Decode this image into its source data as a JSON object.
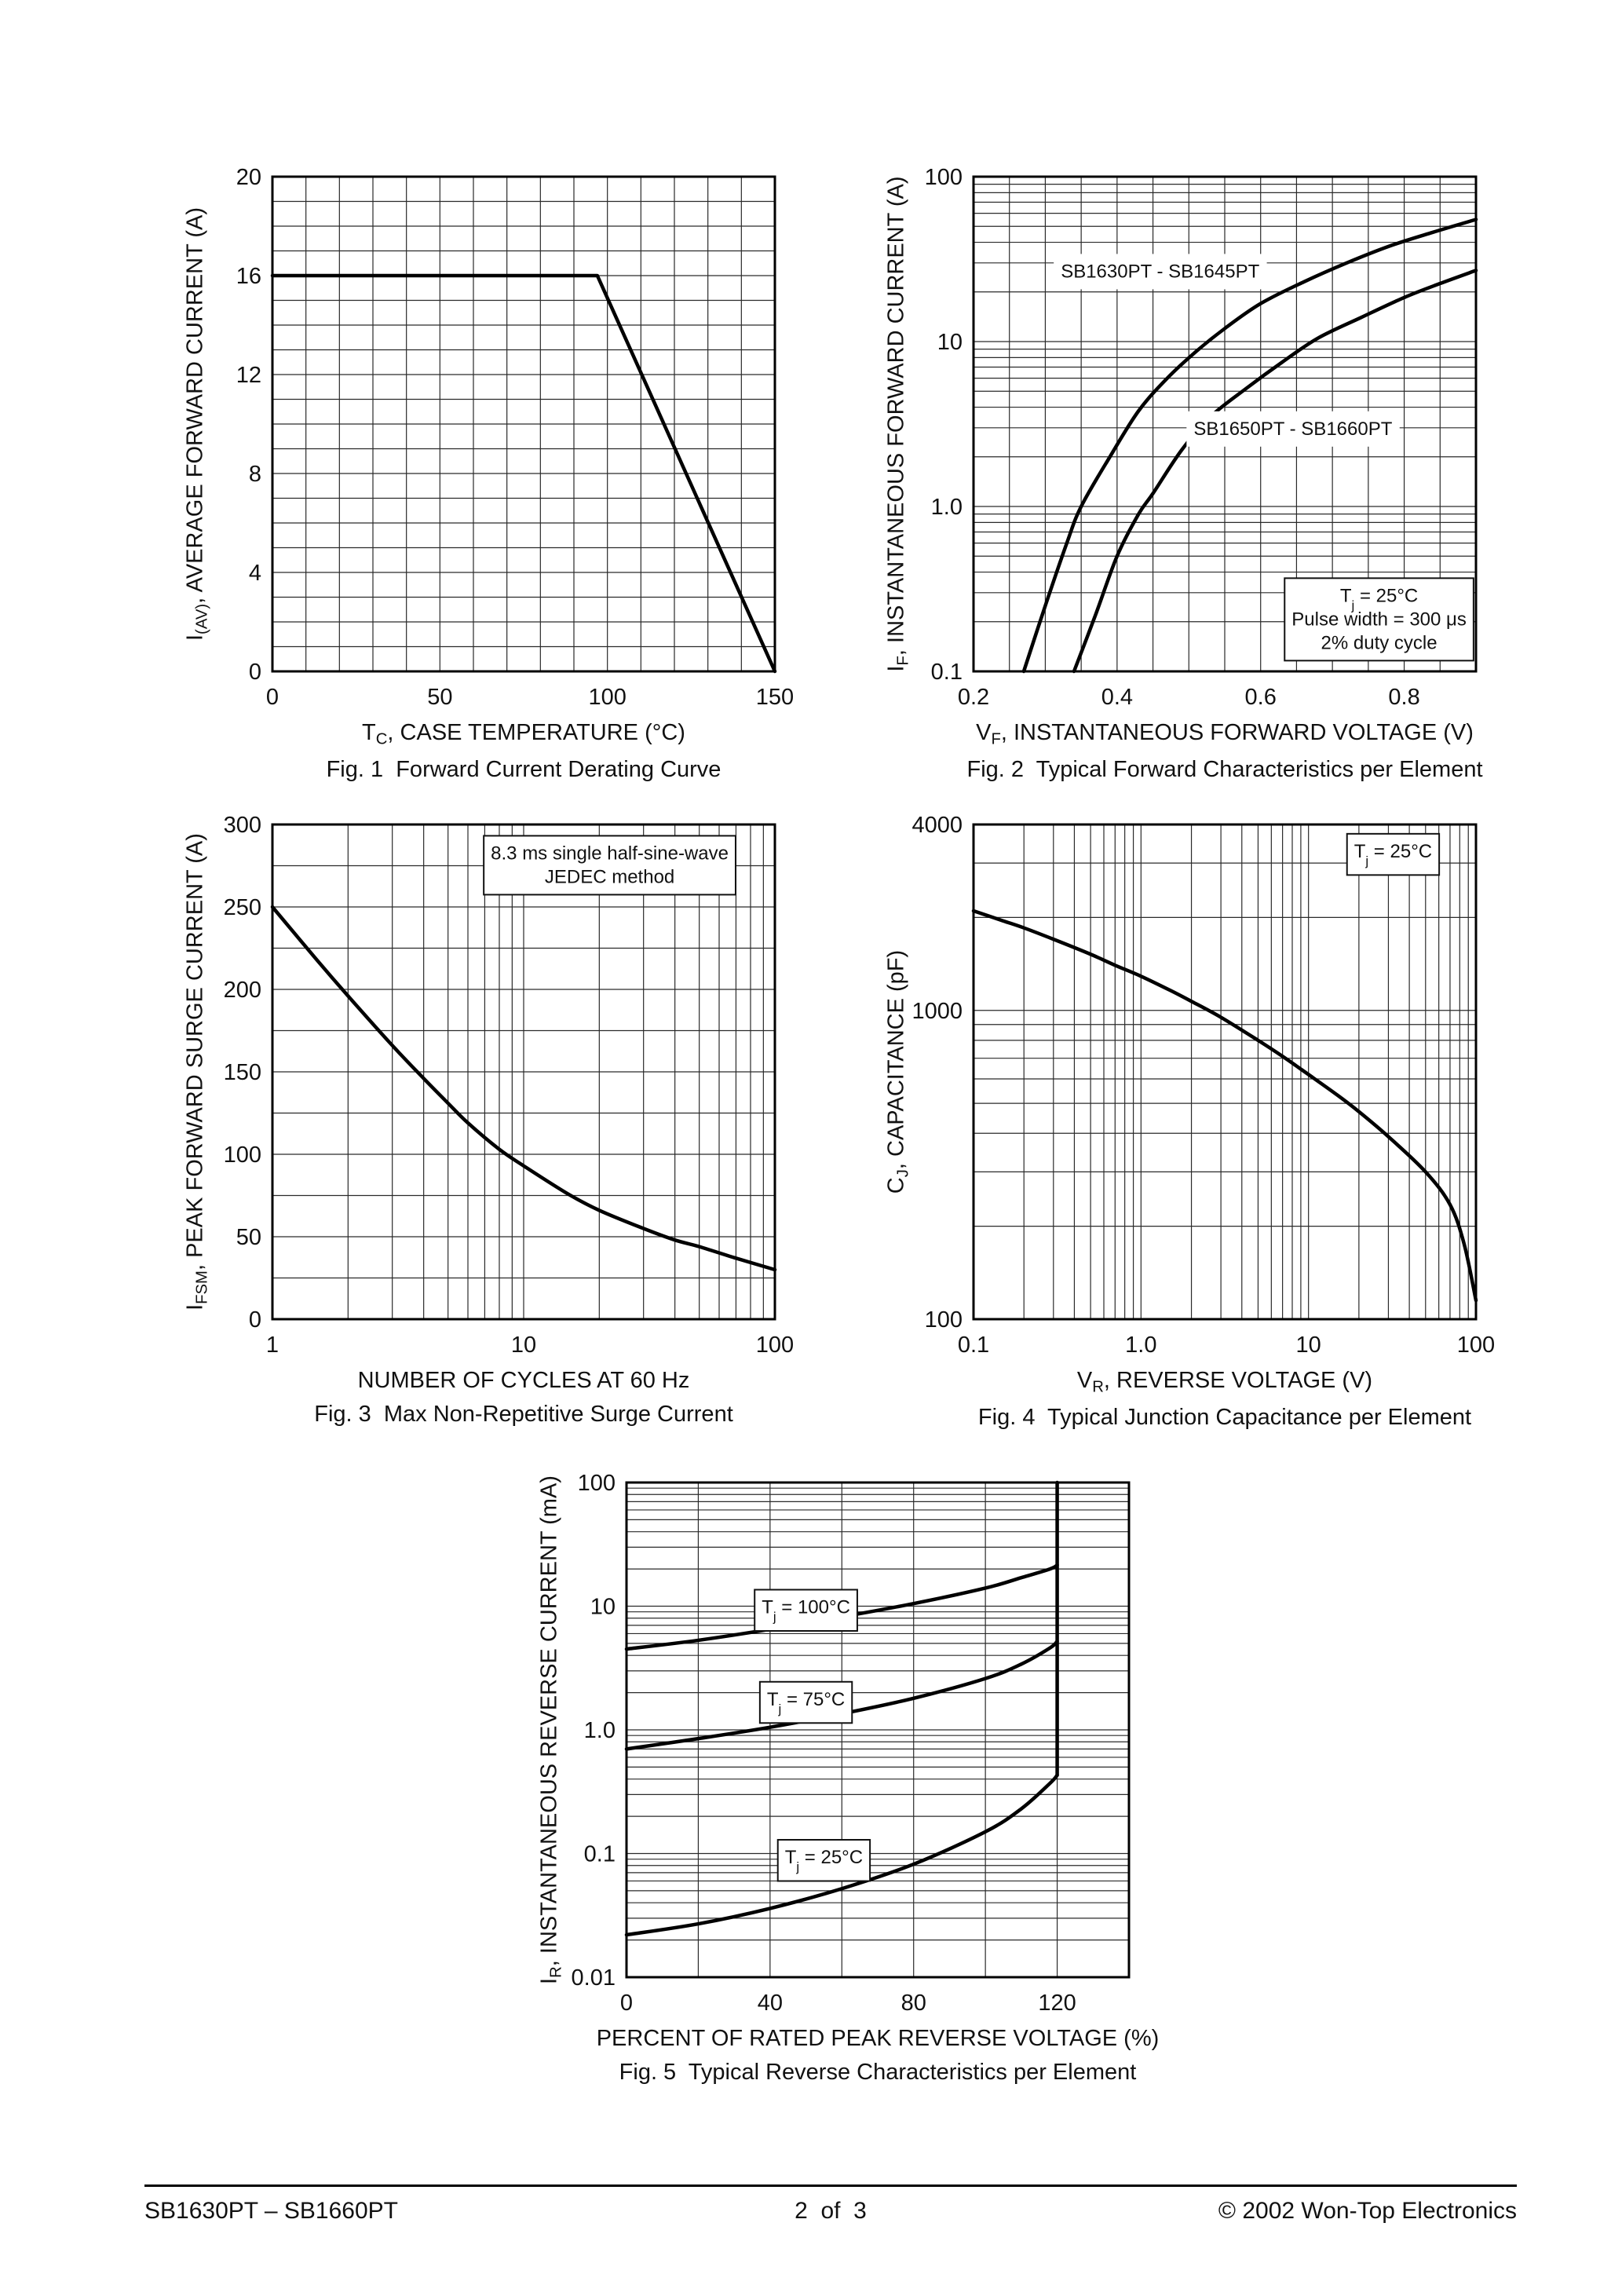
{
  "page": {
    "footer": {
      "left": "SB1630PT – SB1660PT",
      "center": "2  of  3",
      "right": "© 2002 Won-Top Electronics"
    }
  },
  "chart_data": [
    {
      "id": "fig1",
      "type": "line",
      "caption": "Fig. 1  Forward Current Derating Curve",
      "ylabel_parts": [
        {
          "t": "I"
        },
        {
          "t": "(AV)",
          "sub": true
        },
        {
          "t": ", AVERAGE FORWARD CURRENT (A)"
        }
      ],
      "xlabel_parts": [
        {
          "t": "T"
        },
        {
          "t": "C",
          "sub": true
        },
        {
          "t": ", CASE TEMPERATURE (°C)"
        }
      ],
      "x": {
        "type": "linear",
        "min": 0,
        "max": 150,
        "minor_step": 10,
        "ticks": [
          0,
          50,
          100,
          150
        ],
        "tick_labels": [
          "0",
          "50",
          "100",
          "150"
        ]
      },
      "y": {
        "type": "linear",
        "min": 0,
        "max": 20,
        "minor_step": 1,
        "ticks": [
          0,
          4,
          8,
          12,
          16,
          20
        ],
        "tick_labels": [
          "0",
          "4",
          "8",
          "12",
          "16",
          "20"
        ]
      },
      "series": [
        {
          "name": "derating-curve",
          "smooth": false,
          "points": [
            [
              0,
              16
            ],
            [
              97,
              16
            ],
            [
              150,
              0
            ]
          ]
        }
      ],
      "annotations": []
    },
    {
      "id": "fig2",
      "type": "line",
      "caption": "Fig. 2  Typical Forward Characteristics per Element",
      "ylabel_parts": [
        {
          "t": "I"
        },
        {
          "t": "F",
          "sub": true
        },
        {
          "t": ", INSTANTANEOUS FORWARD CURRENT (A)"
        }
      ],
      "xlabel_parts": [
        {
          "t": "V"
        },
        {
          "t": "F",
          "sub": true
        },
        {
          "t": ", INSTANTANEOUS FORWARD VOLTAGE (V)"
        }
      ],
      "x": {
        "type": "linear",
        "min": 0.2,
        "max": 0.9,
        "minor_step": 0.05,
        "ticks": [
          0.2,
          0.4,
          0.6,
          0.8
        ],
        "tick_labels": [
          "0.2",
          "0.4",
          "0.6",
          "0.8"
        ]
      },
      "y": {
        "type": "log",
        "min": 0.1,
        "max": 100,
        "ticks": [
          0.1,
          1,
          10,
          100
        ],
        "tick_labels": [
          "0.1",
          "1.0",
          "10",
          "100"
        ]
      },
      "series": [
        {
          "name": "SB1630PT - SB1645PT",
          "points": [
            [
              0.27,
              0.1
            ],
            [
              0.3,
              0.25
            ],
            [
              0.33,
              0.6
            ],
            [
              0.35,
              1.0
            ],
            [
              0.39,
              2.0
            ],
            [
              0.43,
              3.8
            ],
            [
              0.47,
              6.0
            ],
            [
              0.51,
              8.7
            ],
            [
              0.55,
              12
            ],
            [
              0.6,
              17
            ],
            [
              0.66,
              23
            ],
            [
              0.72,
              30
            ],
            [
              0.78,
              38
            ],
            [
              0.84,
              46
            ],
            [
              0.9,
              55
            ]
          ]
        },
        {
          "name": "SB1650PT - SB1660PT",
          "points": [
            [
              0.34,
              0.1
            ],
            [
              0.37,
              0.22
            ],
            [
              0.4,
              0.5
            ],
            [
              0.43,
              0.9
            ],
            [
              0.45,
              1.2
            ],
            [
              0.49,
              2.2
            ],
            [
              0.53,
              3.5
            ],
            [
              0.58,
              5.2
            ],
            [
              0.63,
              7.5
            ],
            [
              0.68,
              10.5
            ],
            [
              0.74,
              14
            ],
            [
              0.8,
              18.5
            ],
            [
              0.85,
              22.5
            ],
            [
              0.9,
              27
            ]
          ]
        }
      ],
      "annotations": [
        {
          "x": 0.46,
          "y": 27,
          "mask": true,
          "lines": [
            [
              {
                "t": "SB1630PT - SB1645PT"
              }
            ]
          ]
        },
        {
          "x": 0.645,
          "y": 3.0,
          "mask": true,
          "lines": [
            [
              {
                "t": "SB1650PT - SB1660PT"
              }
            ]
          ]
        },
        {
          "x": 0.765,
          "y": 0.21,
          "box": true,
          "lines": [
            [
              {
                "t": "T"
              },
              {
                "t": "j",
                "sub": true
              },
              {
                "t": " = 25°C"
              }
            ],
            [
              {
                "t": "Pulse width = 300 μs"
              }
            ],
            [
              {
                "t": "2% duty cycle"
              }
            ]
          ]
        }
      ]
    },
    {
      "id": "fig3",
      "type": "line",
      "caption": "Fig. 3  Max Non-Repetitive Surge Current",
      "ylabel_parts": [
        {
          "t": "I"
        },
        {
          "t": "FSM",
          "sub": true
        },
        {
          "t": ", PEAK FORWARD SURGE CURRENT (A)"
        }
      ],
      "xlabel_parts": [
        {
          "t": "NUMBER OF CYCLES AT 60 Hz"
        }
      ],
      "x": {
        "type": "log",
        "min": 1,
        "max": 100,
        "ticks": [
          1,
          10,
          100
        ],
        "tick_labels": [
          "1",
          "10",
          "100"
        ]
      },
      "y": {
        "type": "linear",
        "min": 0,
        "max": 300,
        "minor_step": 25,
        "ticks": [
          0,
          50,
          100,
          150,
          200,
          250,
          300
        ],
        "tick_labels": [
          "0",
          "50",
          "100",
          "150",
          "200",
          "250",
          "300"
        ]
      },
      "series": [
        {
          "name": "surge-current",
          "points": [
            [
              1,
              250
            ],
            [
              1.5,
              218
            ],
            [
              2,
              196
            ],
            [
              3,
              166
            ],
            [
              4,
              146
            ],
            [
              5,
              131
            ],
            [
              6,
              119
            ],
            [
              8,
              103
            ],
            [
              10,
              93
            ],
            [
              15,
              76
            ],
            [
              20,
              66
            ],
            [
              30,
              55
            ],
            [
              40,
              48
            ],
            [
              50,
              44
            ],
            [
              70,
              37
            ],
            [
              100,
              30
            ]
          ]
        }
      ],
      "annotations": [
        {
          "x": 22,
          "y": 276,
          "box": true,
          "lines": [
            [
              {
                "t": "8.3 ms single half-sine-wave"
              }
            ],
            [
              {
                "t": "JEDEC method"
              }
            ]
          ]
        }
      ]
    },
    {
      "id": "fig4",
      "type": "line",
      "caption": "Fig. 4  Typical Junction Capacitance per Element",
      "ylabel_parts": [
        {
          "t": "C"
        },
        {
          "t": "J",
          "sub": true
        },
        {
          "t": ", CAPACITANCE (pF)"
        }
      ],
      "xlabel_parts": [
        {
          "t": "V"
        },
        {
          "t": "R",
          "sub": true
        },
        {
          "t": ", REVERSE VOLTAGE (V)"
        }
      ],
      "x": {
        "type": "log",
        "min": 0.1,
        "max": 100,
        "ticks": [
          0.1,
          1,
          10,
          100
        ],
        "tick_labels": [
          "0.1",
          "1.0",
          "10",
          "100"
        ]
      },
      "y": {
        "type": "log",
        "min": 100,
        "max": 4000,
        "ticks": [
          100,
          1000,
          4000
        ],
        "tick_labels": [
          "100",
          "1000",
          "4000"
        ]
      },
      "series": [
        {
          "name": "junction-capacitance",
          "points": [
            [
              0.1,
              2100
            ],
            [
              0.15,
              1950
            ],
            [
              0.2,
              1850
            ],
            [
              0.3,
              1700
            ],
            [
              0.5,
              1520
            ],
            [
              0.7,
              1400
            ],
            [
              1,
              1290
            ],
            [
              1.5,
              1160
            ],
            [
              2,
              1070
            ],
            [
              3,
              950
            ],
            [
              5,
              800
            ],
            [
              7,
              710
            ],
            [
              10,
              620
            ],
            [
              15,
              530
            ],
            [
              20,
              470
            ],
            [
              30,
              390
            ],
            [
              50,
              300
            ],
            [
              70,
              235
            ],
            [
              85,
              175
            ],
            [
              100,
              115
            ]
          ]
        }
      ],
      "annotations": [
        {
          "x": 32,
          "y": 3300,
          "box": true,
          "lines": [
            [
              {
                "t": "T"
              },
              {
                "t": "j",
                "sub": true
              },
              {
                "t": " = 25°C"
              }
            ]
          ]
        }
      ]
    },
    {
      "id": "fig5",
      "type": "line",
      "caption": "Fig. 5  Typical Reverse Characteristics per Element",
      "ylabel_parts": [
        {
          "t": "I"
        },
        {
          "t": "R",
          "sub": true
        },
        {
          "t": ", INSTANTANEOUS REVERSE CURRENT (mA)"
        }
      ],
      "xlabel_parts": [
        {
          "t": "PERCENT OF RATED PEAK REVERSE VOLTAGE (%)"
        }
      ],
      "x": {
        "type": "linear",
        "min": 0,
        "max": 140,
        "minor_step": 20,
        "ticks": [
          0,
          40,
          80,
          120
        ],
        "tick_labels": [
          "0",
          "40",
          "80",
          "120"
        ]
      },
      "y": {
        "type": "log",
        "min": 0.01,
        "max": 100,
        "ticks": [
          0.01,
          0.1,
          1,
          10,
          100
        ],
        "tick_labels": [
          "0.01",
          "0.1",
          "1.0",
          "10",
          "100"
        ]
      },
      "series": [
        {
          "name": "Tj-100C",
          "points": [
            [
              0,
              4.5
            ],
            [
              20,
              5.3
            ],
            [
              40,
              6.5
            ],
            [
              60,
              8.2
            ],
            [
              80,
              10.5
            ],
            [
              100,
              14
            ],
            [
              110,
              17
            ],
            [
              118,
              20
            ],
            [
              120,
              21.5
            ]
          ]
        },
        {
          "name": "Tj-75C",
          "points": [
            [
              0,
              0.7
            ],
            [
              20,
              0.85
            ],
            [
              40,
              1.05
            ],
            [
              60,
              1.35
            ],
            [
              80,
              1.8
            ],
            [
              100,
              2.6
            ],
            [
              110,
              3.4
            ],
            [
              118,
              4.6
            ],
            [
              120,
              5.2
            ]
          ]
        },
        {
          "name": "Tj-25C",
          "points": [
            [
              0,
              0.022
            ],
            [
              20,
              0.027
            ],
            [
              40,
              0.036
            ],
            [
              60,
              0.052
            ],
            [
              80,
              0.082
            ],
            [
              100,
              0.15
            ],
            [
              110,
              0.23
            ],
            [
              118,
              0.37
            ],
            [
              120,
              0.43
            ]
          ]
        },
        {
          "name": "breakdown-line",
          "smooth": false,
          "points": [
            [
              120,
              0.43
            ],
            [
              120,
              100
            ]
          ]
        }
      ],
      "annotations": [
        {
          "x": 50,
          "y": 10,
          "box": true,
          "lines": [
            [
              {
                "t": "T"
              },
              {
                "t": "j",
                "sub": true
              },
              {
                "t": " = 100°C"
              }
            ]
          ]
        },
        {
          "x": 50,
          "y": 1.8,
          "box": true,
          "lines": [
            [
              {
                "t": "T"
              },
              {
                "t": "j",
                "sub": true
              },
              {
                "t": " = 75°C"
              }
            ]
          ]
        },
        {
          "x": 55,
          "y": 0.095,
          "box": true,
          "lines": [
            [
              {
                "t": "T"
              },
              {
                "t": "j",
                "sub": true
              },
              {
                "t": " = 25°C"
              }
            ]
          ]
        }
      ]
    }
  ]
}
